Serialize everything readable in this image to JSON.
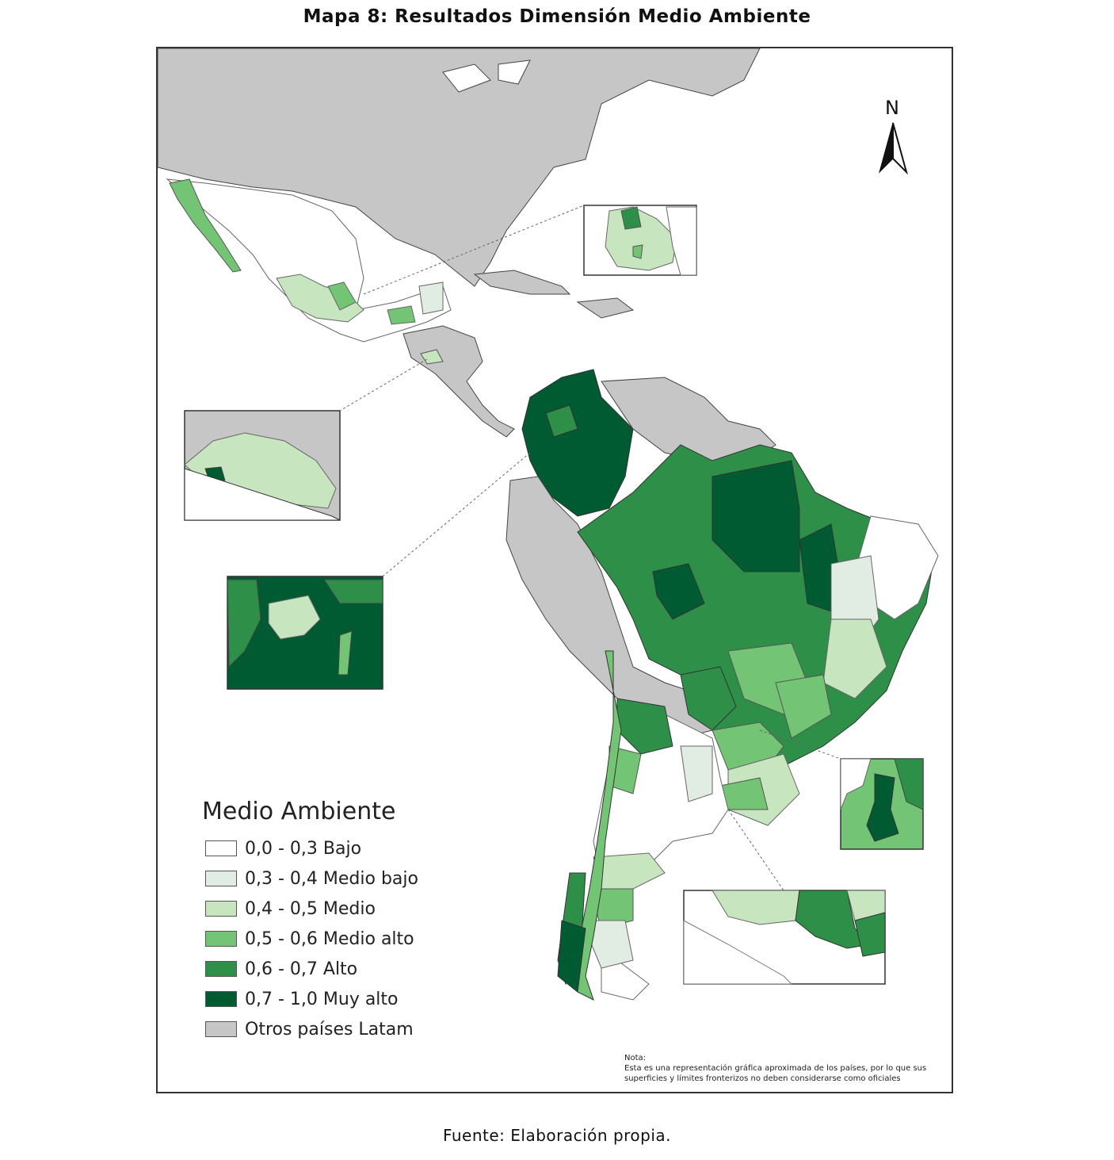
{
  "title": "Mapa 8: Resultados Dimensión Medio Ambiente",
  "north_label": "N",
  "legend": {
    "title": "Medio Ambiente",
    "items": [
      {
        "label": "0,0 - 0,3 Bajo",
        "color": "#ffffff"
      },
      {
        "label": "0,3 - 0,4 Medio bajo",
        "color": "#e1ede3"
      },
      {
        "label": "0,4 - 0,5 Medio",
        "color": "#c7e6c0"
      },
      {
        "label": "0,5 - 0,6 Medio alto",
        "color": "#74c476"
      },
      {
        "label": "0,6 - 0,7 Alto",
        "color": "#2e9048"
      },
      {
        "label": "0,7 - 1,0 Muy alto",
        "color": "#005a32"
      },
      {
        "label": "Otros países Latam",
        "color": "#c6c6c6"
      }
    ]
  },
  "note": {
    "heading": "Nota:",
    "line1": "Esta es una representación gráfica aproximada de los países, por lo que sus",
    "line2": "superficies y límites fronterizos no deben considerarse como oficiales"
  },
  "source": "Fuente: Elaboración propia."
}
